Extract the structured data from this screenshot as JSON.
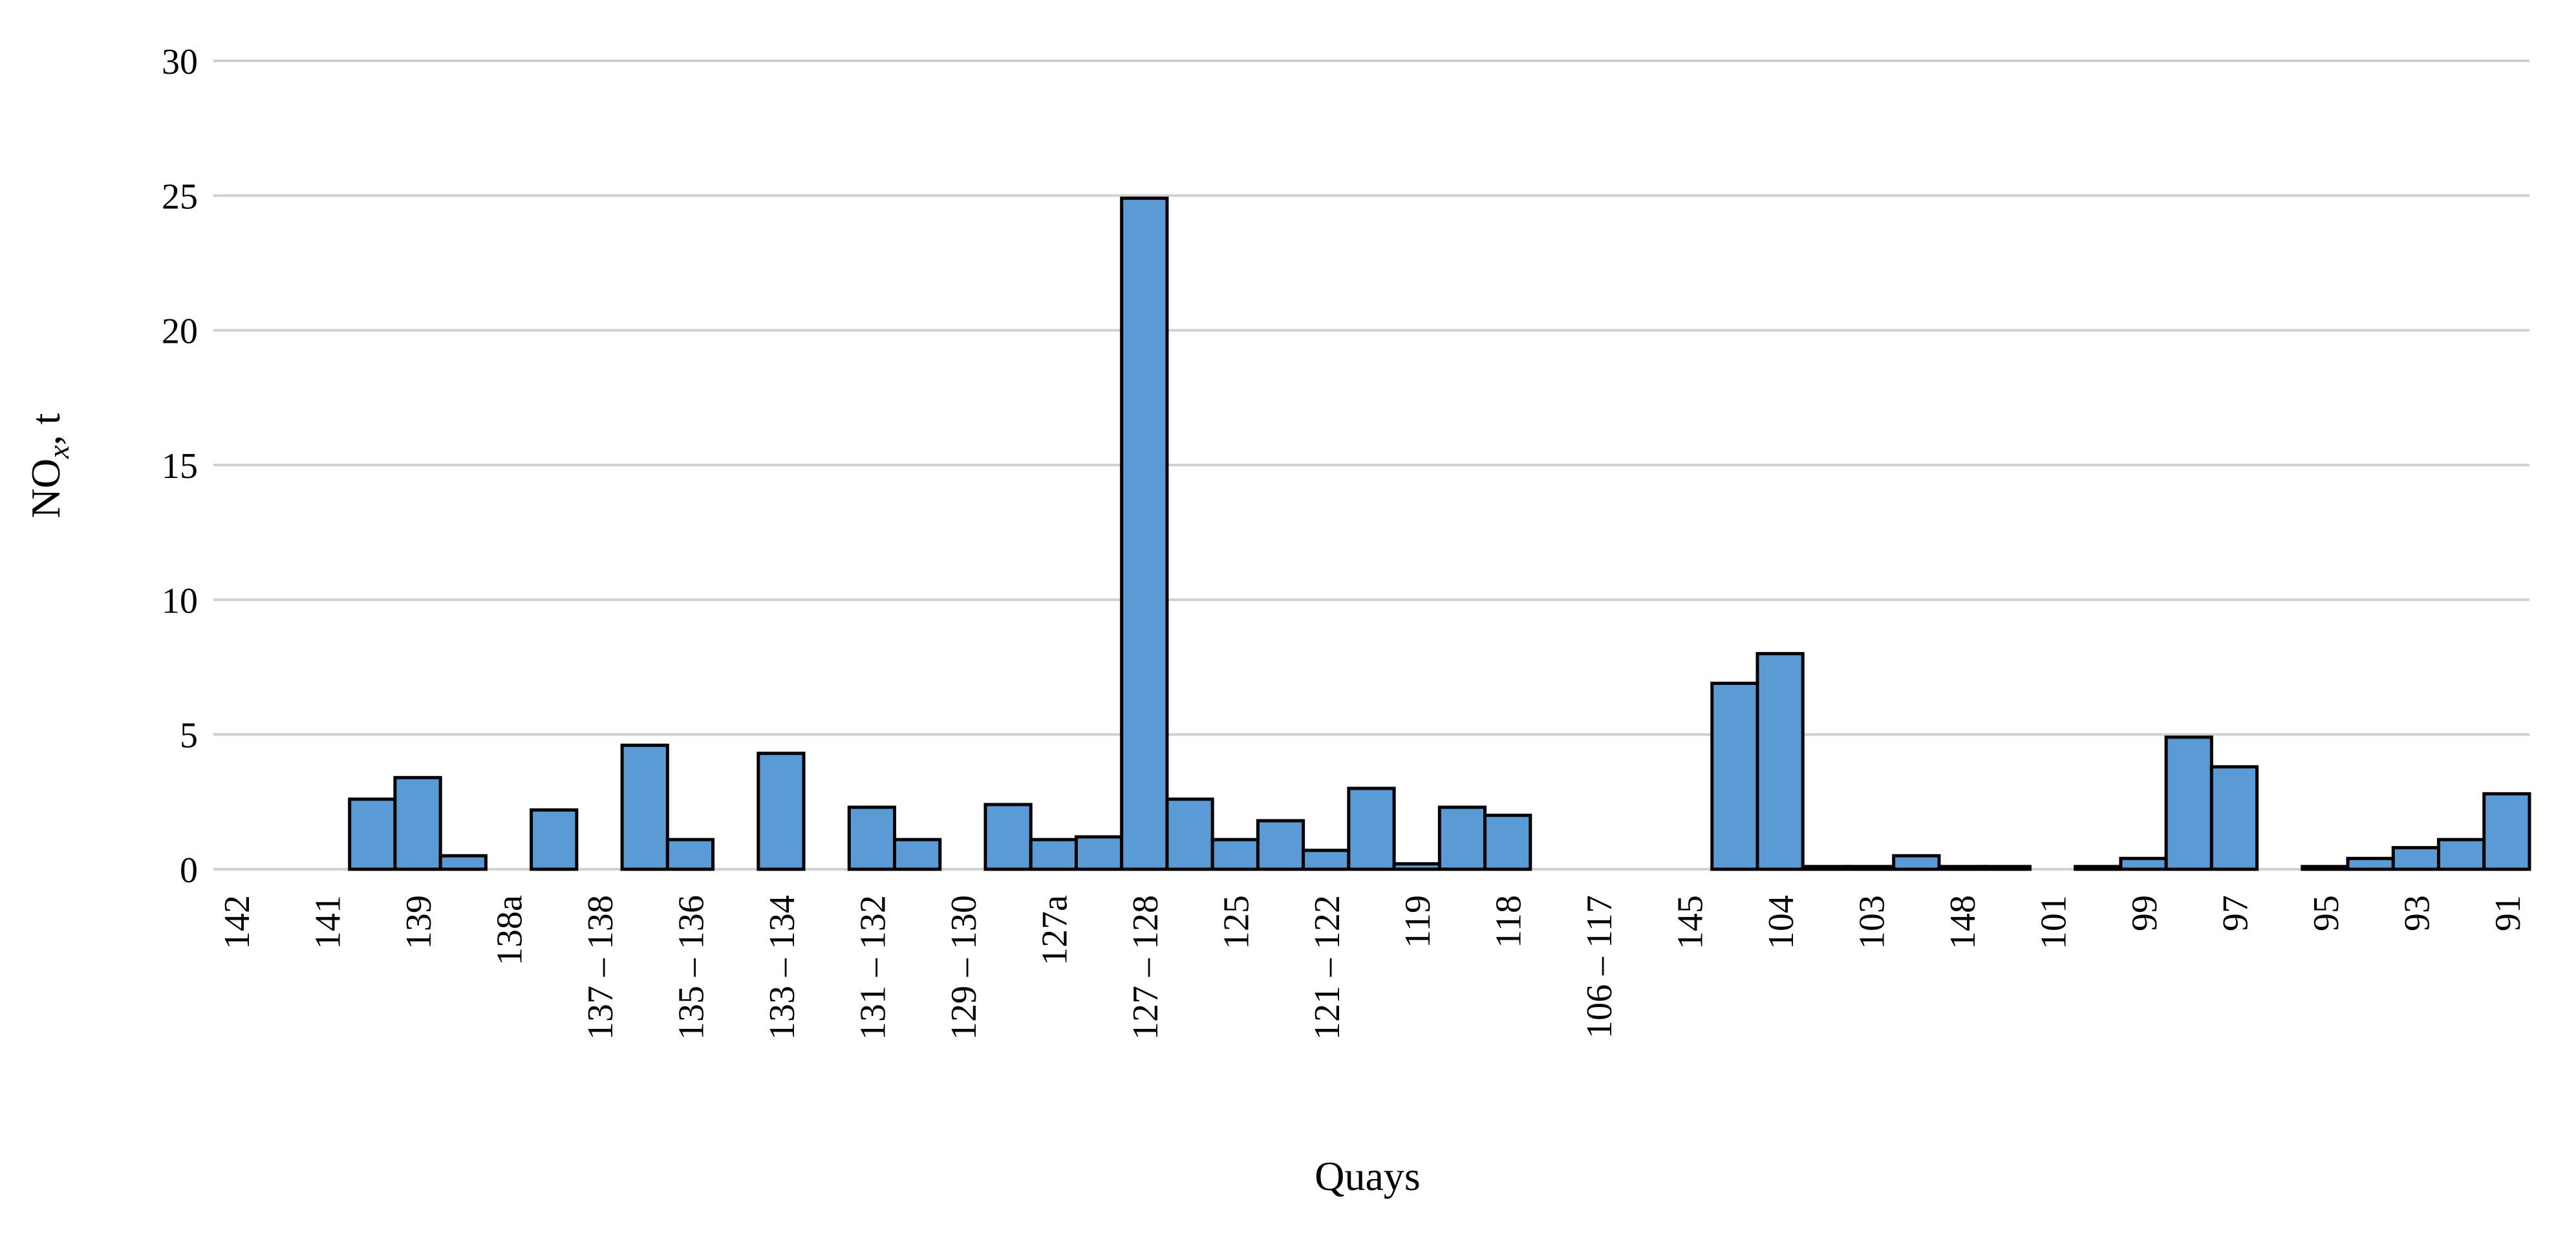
{
  "chart_data": {
    "type": "bar",
    "x_label": "Quays",
    "y_label": {
      "main": "NO",
      "sub": "x",
      "rest": ", t"
    },
    "color": "#5b9bd5",
    "grid": true,
    "ylim": [
      0,
      30
    ],
    "yticks": [
      0,
      5,
      10,
      15,
      20,
      25,
      30
    ],
    "categories": [
      "142",
      null,
      "141",
      null,
      "139",
      null,
      "138a",
      null,
      "137 – 138",
      null,
      "135 – 136",
      null,
      "133 – 134",
      null,
      "131 – 132",
      null,
      "129 – 130",
      null,
      "127a",
      null,
      "127 – 128",
      null,
      "125",
      null,
      "121 – 122",
      null,
      "119",
      null,
      "118",
      null,
      "106 – 117",
      null,
      "145",
      null,
      "104",
      null,
      "103",
      null,
      "148",
      null,
      "101",
      null,
      "99",
      null,
      "97",
      null,
      "95",
      null,
      "93",
      null,
      "91"
    ],
    "values": [
      0,
      0,
      0,
      2.6,
      3.4,
      0.5,
      0,
      2.2,
      0,
      4.6,
      1.1,
      0,
      4.3,
      0,
      2.3,
      1.1,
      0,
      2.4,
      1.1,
      1.2,
      24.9,
      2.6,
      1.1,
      1.8,
      0.7,
      3.0,
      0.2,
      2.3,
      2.0,
      0,
      0,
      0,
      0,
      6.9,
      8.0,
      0.1,
      0.1,
      0.5,
      0.1,
      0.1,
      0,
      0.1,
      0.4,
      4.9,
      3.8,
      0,
      0.1,
      0.4,
      0.8,
      1.1,
      2.8
    ]
  }
}
